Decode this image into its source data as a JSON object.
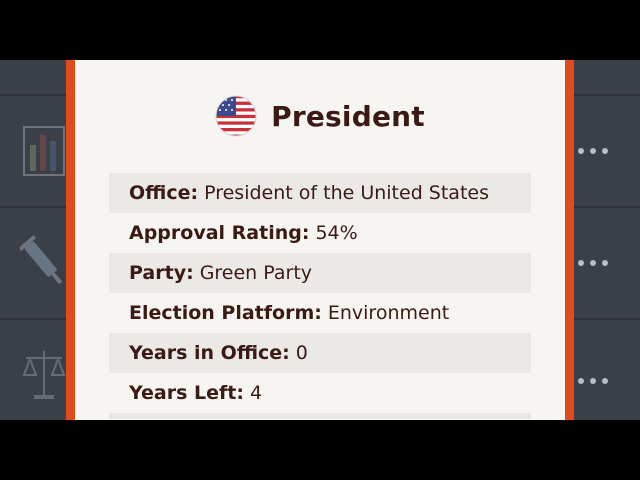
{
  "dialog": {
    "title": "President",
    "icon": "us-flag-icon",
    "rows": [
      {
        "label": "Office:",
        "value": "President of the United States"
      },
      {
        "label": "Approval Rating:",
        "value": "54%"
      },
      {
        "label": "Party:",
        "value": "Green Party"
      },
      {
        "label": "Election Platform:",
        "value": "Environment"
      },
      {
        "label": "Years in Office:",
        "value": "0"
      },
      {
        "label": "Years Left:",
        "value": "4"
      }
    ]
  },
  "background_list": {
    "items": [
      {
        "icon": "bar-chart-icon",
        "action": "more-options-icon"
      },
      {
        "icon": "syringe-icon",
        "action": "more-options-icon"
      },
      {
        "icon": "scales-of-justice-icon",
        "action": "more-options-icon"
      }
    ]
  },
  "colors": {
    "modal_border": "#e24a1f",
    "modal_background": "#f7f5f2",
    "text": "#3b1a14",
    "row_stripe": "#ebe9e6",
    "backdrop": "#3b3f47"
  }
}
